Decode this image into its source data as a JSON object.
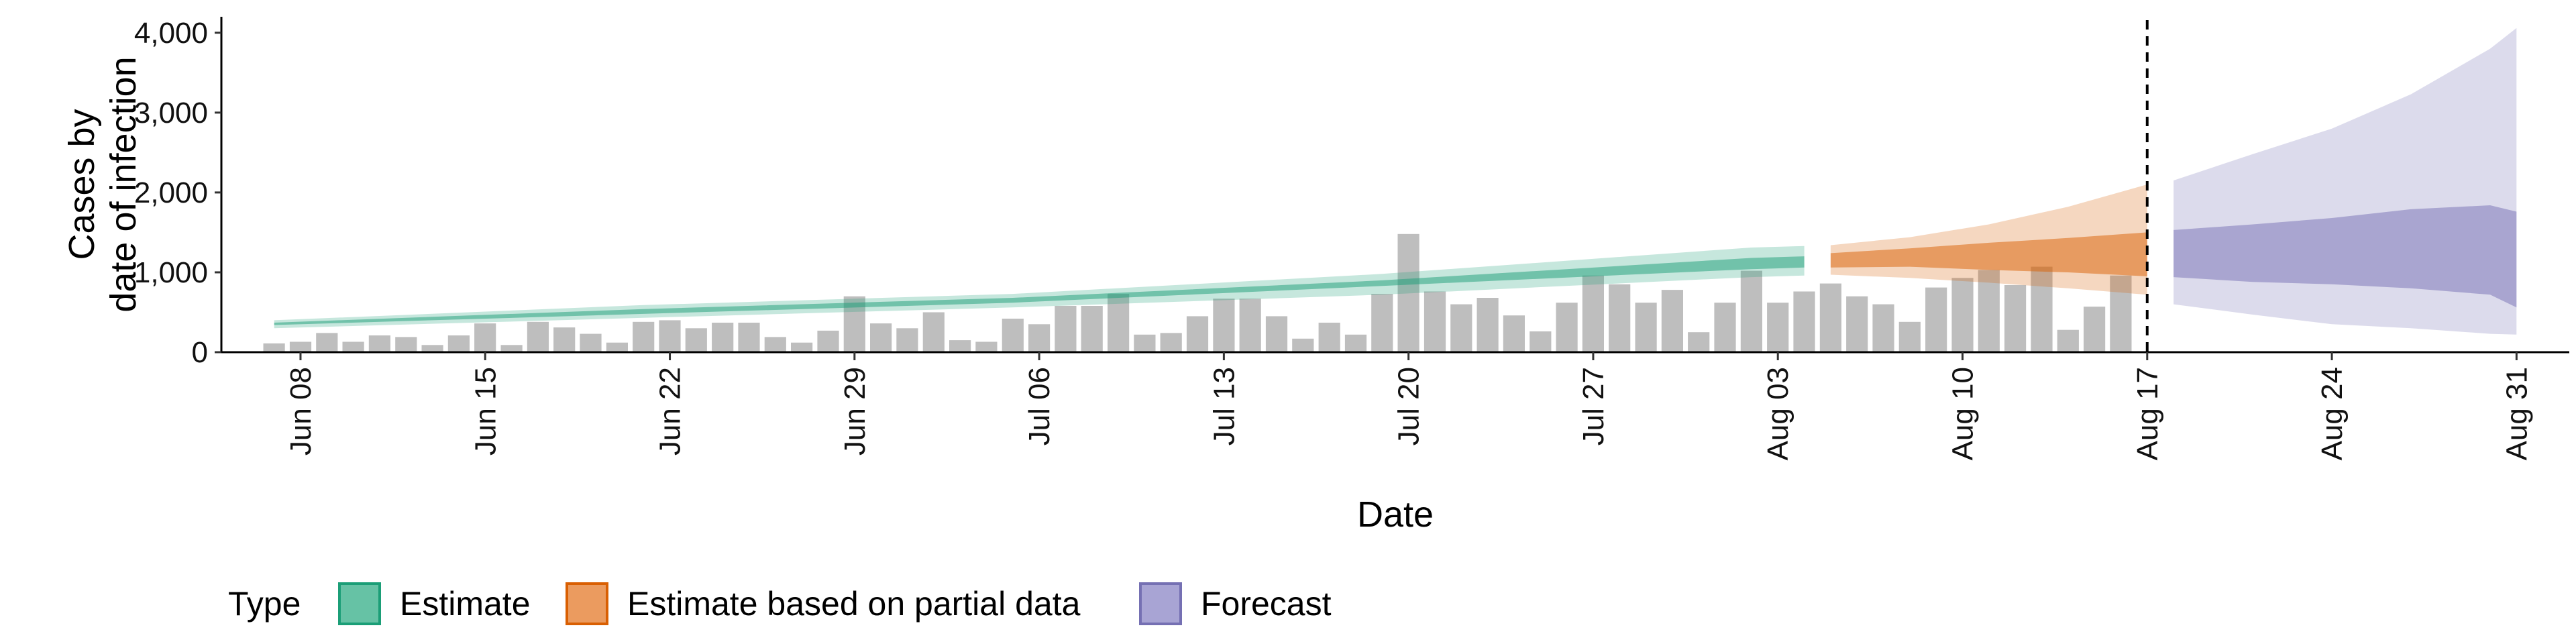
{
  "chart_data": {
    "type": "area",
    "xlabel": "Date",
    "ylabel": [
      "Cases by",
      "date of infection"
    ],
    "ylim": [
      0,
      4200
    ],
    "xlim": [
      "2020-06-05",
      "2020-09-02"
    ],
    "yticks": [
      {
        "value": 0,
        "label": "0"
      },
      {
        "value": 1000,
        "label": "1,000"
      },
      {
        "value": 2000,
        "label": "2,000"
      },
      {
        "value": 3000,
        "label": "3,000"
      },
      {
        "value": 4000,
        "label": "4,000"
      }
    ],
    "xticks": [
      {
        "date": "2020-06-08",
        "label": "Jun 08"
      },
      {
        "date": "2020-06-15",
        "label": "Jun 15"
      },
      {
        "date": "2020-06-22",
        "label": "Jun 22"
      },
      {
        "date": "2020-06-29",
        "label": "Jun 29"
      },
      {
        "date": "2020-07-06",
        "label": "Jul 06"
      },
      {
        "date": "2020-07-13",
        "label": "Jul 13"
      },
      {
        "date": "2020-07-20",
        "label": "Jul 20"
      },
      {
        "date": "2020-07-27",
        "label": "Jul 27"
      },
      {
        "date": "2020-08-03",
        "label": "Aug 03"
      },
      {
        "date": "2020-08-10",
        "label": "Aug 10"
      },
      {
        "date": "2020-08-17",
        "label": "Aug 17"
      },
      {
        "date": "2020-08-24",
        "label": "Aug 24"
      },
      {
        "date": "2020-08-31",
        "label": "Aug 31"
      }
    ],
    "vline_date": "2020-08-17",
    "grid": false,
    "legend": {
      "position": "bottom-left",
      "title": "Type",
      "entries": [
        {
          "label": "Estimate",
          "fill": "#66C2A5",
          "stroke": "#1B9E77"
        },
        {
          "label": "Estimate based on partial data",
          "fill": "#EB9B5F",
          "stroke": "#D95F02"
        },
        {
          "label": "Forecast",
          "fill": "#A8A4D4",
          "stroke": "#7570B3"
        }
      ]
    },
    "colors": {
      "bars": "#BEBEBE",
      "estimate": "#1B9E77",
      "partial": "#D95F02",
      "forecast": "#7570B3",
      "vline": "#000000"
    },
    "bars": {
      "start_date": "2020-06-07",
      "values": [
        110,
        130,
        240,
        130,
        210,
        190,
        90,
        210,
        360,
        90,
        380,
        310,
        230,
        120,
        380,
        400,
        300,
        370,
        370,
        190,
        120,
        270,
        700,
        360,
        300,
        500,
        150,
        130,
        420,
        350,
        580,
        580,
        730,
        220,
        240,
        450,
        670,
        670,
        450,
        170,
        370,
        220,
        730,
        1480,
        760,
        600,
        680,
        460,
        260,
        620,
        960,
        850,
        620,
        780,
        250,
        620,
        1020,
        620,
        760,
        860,
        700,
        600,
        380,
        810,
        930,
        1030,
        840,
        1070,
        280,
        570,
        960
      ]
    },
    "series": [
      {
        "name": "Estimate",
        "x": [
          "2020-06-07",
          "2020-06-21",
          "2020-07-05",
          "2020-07-19",
          "2020-08-02",
          "2020-08-04"
        ],
        "outer_low": [
          300,
          430,
          560,
          720,
          940,
          960
        ],
        "outer_high": [
          400,
          590,
          730,
          980,
          1310,
          1330
        ],
        "inner_low": [
          340,
          480,
          620,
          830,
          1040,
          1060
        ],
        "inner_high": [
          370,
          540,
          680,
          900,
          1180,
          1200
        ]
      },
      {
        "name": "Estimate based on partial data",
        "x": [
          "2020-08-05",
          "2020-08-08",
          "2020-08-11",
          "2020-08-14",
          "2020-08-17"
        ],
        "outer_low": [
          970,
          930,
          870,
          800,
          720
        ],
        "outer_high": [
          1340,
          1440,
          1600,
          1820,
          2100
        ],
        "inner_low": [
          1060,
          1070,
          1030,
          1000,
          950
        ],
        "inner_high": [
          1240,
          1300,
          1370,
          1430,
          1500
        ]
      },
      {
        "name": "Forecast",
        "x": [
          "2020-08-18",
          "2020-08-21",
          "2020-08-24",
          "2020-08-27",
          "2020-08-30",
          "2020-08-31"
        ],
        "outer_low": [
          600,
          470,
          350,
          300,
          230,
          220
        ],
        "outer_high": [
          2150,
          2480,
          2800,
          3230,
          3800,
          4060
        ],
        "inner_low": [
          940,
          880,
          850,
          800,
          720,
          560
        ],
        "inner_high": [
          1530,
          1600,
          1680,
          1790,
          1840,
          1760
        ]
      }
    ]
  }
}
